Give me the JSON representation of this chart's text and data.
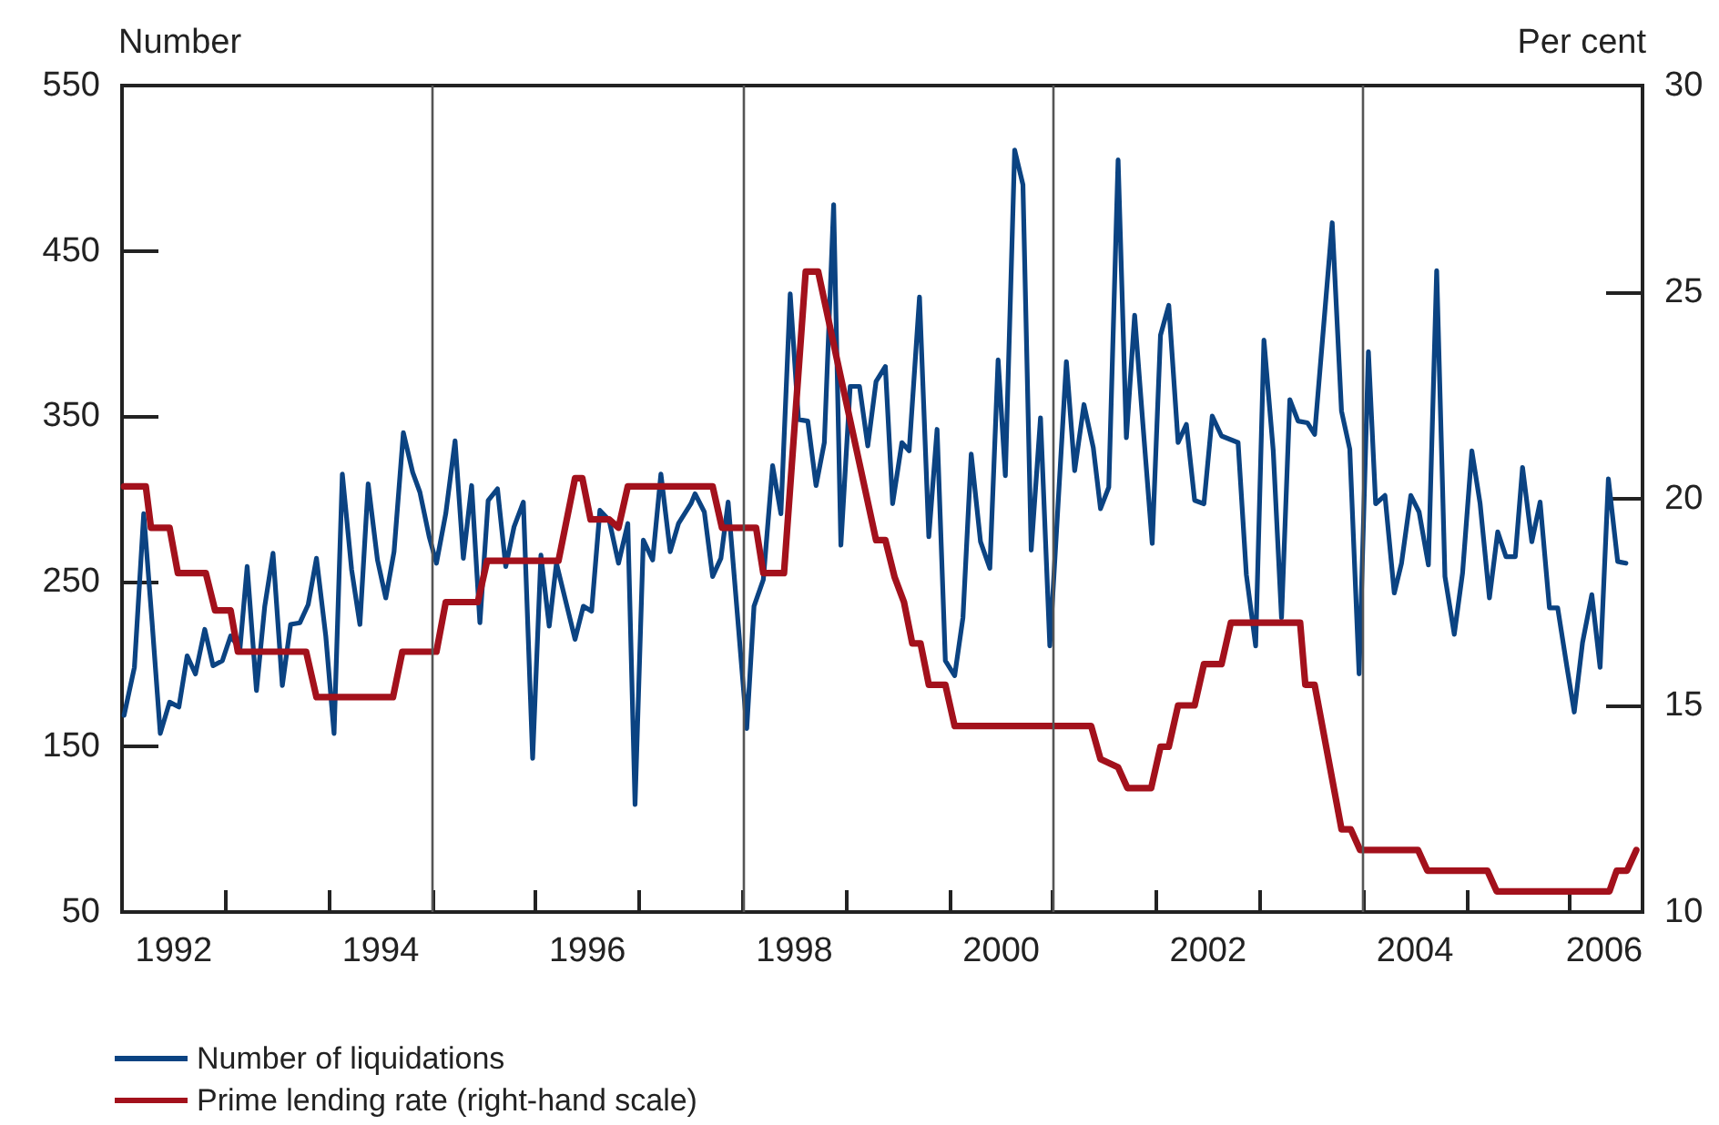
{
  "chart_data": {
    "type": "line",
    "ylabel": "Number",
    "y2label": "Per cent",
    "xlim": [
      1992,
      2006.7
    ],
    "xticks": [
      {
        "value": 1992.5,
        "label": "1992"
      },
      {
        "value": 1993,
        "label": null
      },
      {
        "value": 1994,
        "label": null
      },
      {
        "value": 1994.5,
        "label": "1994"
      },
      {
        "value": 1995,
        "label": null
      },
      {
        "value": 1996,
        "label": null
      },
      {
        "value": 1996.5,
        "label": "1996"
      },
      {
        "value": 1997,
        "label": null
      },
      {
        "value": 1998,
        "label": null
      },
      {
        "value": 1998.5,
        "label": "1998"
      },
      {
        "value": 1999,
        "label": null
      },
      {
        "value": 2000,
        "label": null
      },
      {
        "value": 2000.5,
        "label": "2000"
      },
      {
        "value": 2001,
        "label": null
      },
      {
        "value": 2002,
        "label": null
      },
      {
        "value": 2002.5,
        "label": "2002"
      },
      {
        "value": 2003,
        "label": null
      },
      {
        "value": 2004,
        "label": null
      },
      {
        "value": 2004.5,
        "label": "2004"
      },
      {
        "value": 2005,
        "label": null
      },
      {
        "value": 2006,
        "label": null
      },
      {
        "value": 2006.33,
        "label": "2006"
      }
    ],
    "ylim": [
      50,
      550
    ],
    "yticks": [
      50,
      150,
      250,
      350,
      450,
      550
    ],
    "y2lim": [
      10,
      30
    ],
    "y2ticks": [
      10,
      15,
      20,
      25,
      30
    ],
    "grid": false,
    "legend": "bottom",
    "marker": "none",
    "line_style": "solid",
    "ref_lines": [
      {
        "axis": "x",
        "value": 1995,
        "color": "#555555"
      },
      {
        "axis": "x",
        "value": 1998,
        "color": "#555555"
      },
      {
        "axis": "x",
        "value": 2001,
        "color": "#555555"
      },
      {
        "axis": "x",
        "value": 2004,
        "color": "#555555"
      }
    ],
    "series": [
      {
        "name": "Number of liquidations",
        "color": "#0b4382",
        "x": [
          1992.02,
          1992.12,
          1992.21,
          1992.29,
          1992.37,
          1992.46,
          1992.55,
          1992.63,
          1992.71,
          1992.8,
          1992.88,
          1992.97,
          1993.05,
          1993.14,
          1993.21,
          1993.3,
          1993.38,
          1993.46,
          1993.55,
          1993.63,
          1993.72,
          1993.8,
          1993.88,
          1993.97,
          1994.05,
          1994.13,
          1994.22,
          1994.3,
          1994.38,
          1994.47,
          1994.55,
          1994.63,
          1994.72,
          1994.81,
          1994.88,
          1994.97,
          1995.04,
          1995.13,
          1995.22,
          1995.3,
          1995.38,
          1995.46,
          1995.54,
          1995.63,
          1995.71,
          1995.79,
          1995.88,
          1995.97,
          1996.05,
          1996.13,
          1996.2,
          1996.38,
          1996.46,
          1996.54,
          1996.62,
          1996.71,
          1996.8,
          1996.89,
          1996.96,
          1997.04,
          1997.13,
          1997.21,
          1997.3,
          1997.38,
          1997.5,
          1997.54,
          1997.63,
          1997.71,
          1997.79,
          1997.86,
          1998.04,
          1998.11,
          1998.2,
          1998.29,
          1998.37,
          1998.46,
          1998.54,
          1998.63,
          1998.71,
          1998.79,
          1998.88,
          1998.95,
          1999.04,
          1999.13,
          1999.21,
          1999.29,
          1999.38,
          1999.45,
          1999.54,
          1999.61,
          1999.71,
          1999.8,
          1999.88,
          1999.96,
          2000.05,
          2000.13,
          2000.21,
          2000.3,
          2000.39,
          2000.47,
          2000.54,
          2000.63,
          2000.71,
          2000.79,
          2000.88,
          2000.97,
          2001.13,
          2001.21,
          2001.3,
          2001.39,
          2001.46,
          2001.54,
          2001.63,
          2001.71,
          2001.79,
          2001.87,
          2001.96,
          2002.04,
          2002.12,
          2002.21,
          2002.29,
          2002.37,
          2002.46,
          2002.54,
          2002.63,
          2002.79,
          2002.87,
          2002.96,
          2003.04,
          2003.13,
          2003.21,
          2003.29,
          2003.37,
          2003.46,
          2003.53,
          2003.7,
          2003.79,
          2003.87,
          2003.96,
          2004.05,
          2004.12,
          2004.21,
          2004.3,
          2004.37,
          2004.46,
          2004.54,
          2004.63,
          2004.71,
          2004.79,
          2004.88,
          2004.96,
          2005.05,
          2005.13,
          2005.22,
          2005.3,
          2005.38,
          2005.47,
          2005.54,
          2005.63,
          2005.71,
          2005.8,
          2005.88,
          2005.97,
          2006.04,
          2006.12,
          2006.21,
          2006.29,
          2006.37,
          2006.46,
          2006.54
        ],
        "values": [
          169,
          198,
          291,
          226,
          158,
          177,
          174,
          205,
          194,
          221,
          199,
          202,
          217,
          209,
          259,
          184,
          235,
          267,
          187,
          224,
          225,
          236,
          264,
          217,
          158,
          315,
          257,
          224,
          309,
          263,
          240,
          268,
          340,
          316,
          304,
          277,
          261,
          291,
          335,
          264,
          308,
          225,
          299,
          306,
          259,
          283,
          298,
          143,
          266,
          223,
          261,
          215,
          235,
          232,
          293,
          287,
          261,
          285,
          115,
          275,
          263,
          315,
          268,
          285,
          297,
          303,
          292,
          253,
          264,
          298,
          161,
          235,
          251,
          320,
          291,
          424,
          348,
          347,
          308,
          334,
          478,
          272,
          368,
          368,
          332,
          371,
          380,
          297,
          334,
          329,
          422,
          277,
          342,
          202,
          193,
          228,
          327,
          274,
          258,
          384,
          314,
          511,
          490,
          269,
          349,
          211,
          383,
          317,
          357,
          331,
          294,
          307,
          505,
          337,
          411,
          345,
          273,
          399,
          417,
          334,
          345,
          299,
          297,
          350,
          338,
          334,
          254,
          211,
          396,
          329,
          228,
          360,
          347,
          346,
          339,
          467,
          353,
          330,
          194,
          389,
          297,
          302,
          243,
          261,
          302,
          292,
          260,
          438,
          253,
          218,
          255,
          329,
          297,
          240,
          280,
          265,
          265,
          319,
          274,
          298,
          234,
          234,
          198,
          171,
          213,
          242,
          198,
          312,
          262,
          261
        ]
      },
      {
        "name": "Prime lending rate (right-hand scale)",
        "color": "#a3111c",
        "axis": "y2",
        "x": [
          1992.02,
          1992.23,
          1992.28,
          1992.46,
          1992.54,
          1992.81,
          1992.9,
          1993.05,
          1993.12,
          1993.78,
          1993.88,
          1994.62,
          1994.71,
          1995.04,
          1995.13,
          1995.44,
          1995.53,
          1996.22,
          1996.38,
          1996.45,
          1996.53,
          1996.71,
          1996.8,
          1996.89,
          1997.71,
          1997.8,
          1998.13,
          1998.2,
          1998.4,
          1998.61,
          1998.73,
          1998.91,
          1999.29,
          1999.38,
          1999.47,
          1999.56,
          1999.64,
          1999.72,
          1999.8,
          1999.96,
          2000.05,
          2001.37,
          2001.46,
          2001.63,
          2001.72,
          2001.95,
          2002.04,
          2002.12,
          2002.21,
          2002.37,
          2002.46,
          2002.63,
          2002.72,
          2003.39,
          2003.44,
          2003.53,
          2003.79,
          2003.88,
          2003.97,
          2004.53,
          2004.62,
          2005.2,
          2005.29,
          2006.38,
          2006.45,
          2006.55,
          2006.64
        ],
        "values": [
          20.3,
          20.3,
          19.3,
          19.3,
          18.2,
          18.2,
          17.3,
          17.3,
          16.3,
          16.3,
          15.2,
          15.2,
          16.3,
          16.3,
          17.5,
          17.5,
          18.5,
          18.5,
          20.5,
          20.5,
          19.5,
          19.5,
          19.3,
          20.3,
          20.3,
          19.3,
          19.3,
          18.2,
          18.2,
          25.5,
          25.5,
          23.4,
          19.0,
          19.0,
          18.1,
          17.5,
          16.5,
          16.5,
          15.5,
          15.5,
          14.5,
          14.5,
          13.7,
          13.5,
          13.0,
          13.0,
          14.0,
          14.0,
          15.0,
          15.0,
          16.0,
          16.0,
          17.0,
          17.0,
          15.5,
          15.5,
          12.0,
          12.0,
          11.5,
          11.5,
          11.0,
          11.0,
          10.5,
          10.5,
          11.0,
          11.0,
          11.5
        ]
      }
    ]
  }
}
